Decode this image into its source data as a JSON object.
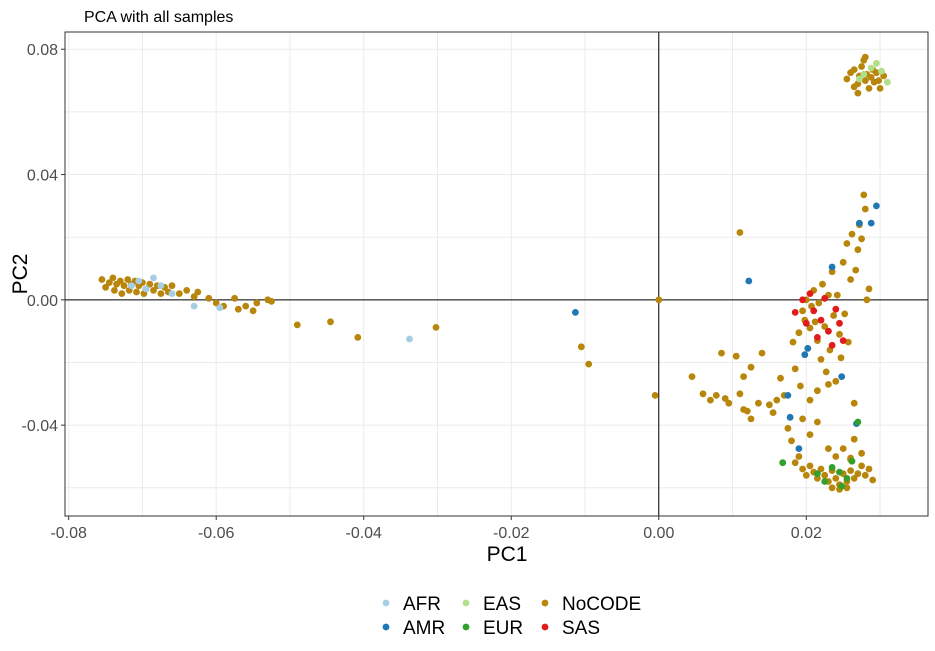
{
  "chart_data": {
    "type": "scatter",
    "title": "PCA with all samples",
    "xlabel": "PC1",
    "ylabel": "PC2",
    "xlim": [
      -0.0805,
      0.0365
    ],
    "ylim": [
      -0.069,
      0.0855
    ],
    "xticks": [
      -0.08,
      -0.06,
      -0.04,
      -0.02,
      0.0,
      0.02
    ],
    "xtick_labels": [
      "-0.08",
      "-0.06",
      "-0.04",
      "-0.02",
      "0.00",
      "0.02"
    ],
    "yticks": [
      -0.04,
      0.0,
      0.04,
      0.08
    ],
    "ytick_labels": [
      "-0.04",
      "0.00",
      "0.04",
      "0.08"
    ],
    "grid": true,
    "reference_lines": {
      "x": 0,
      "y": 0
    },
    "legend_position": "bottom",
    "series": [
      {
        "name": "NoCODE",
        "color": "#b8860b",
        "points": [
          [
            -0.0755,
            0.0065
          ],
          [
            -0.075,
            0.004
          ],
          [
            -0.0745,
            0.0055
          ],
          [
            -0.074,
            0.007
          ],
          [
            -0.0738,
            0.003
          ],
          [
            -0.0735,
            0.005
          ],
          [
            -0.073,
            0.006
          ],
          [
            -0.0728,
            0.002
          ],
          [
            -0.0725,
            0.0045
          ],
          [
            -0.072,
            0.0065
          ],
          [
            -0.0718,
            0.003
          ],
          [
            -0.0715,
            0.005
          ],
          [
            -0.071,
            0.006
          ],
          [
            -0.0708,
            0.0025
          ],
          [
            -0.0705,
            0.0045
          ],
          [
            -0.07,
            0.0055
          ],
          [
            -0.0698,
            0.002
          ],
          [
            -0.0695,
            0.0035
          ],
          [
            -0.069,
            0.005
          ],
          [
            -0.0685,
            0.003
          ],
          [
            -0.068,
            0.0045
          ],
          [
            -0.0675,
            0.002
          ],
          [
            -0.067,
            0.004
          ],
          [
            -0.0665,
            0.0025
          ],
          [
            -0.066,
            0.0045
          ],
          [
            -0.065,
            0.002
          ],
          [
            -0.064,
            0.003
          ],
          [
            -0.063,
            0.001
          ],
          [
            -0.0625,
            0.0025
          ],
          [
            -0.061,
            0.0005
          ],
          [
            -0.06,
            -0.001
          ],
          [
            -0.059,
            -0.002
          ],
          [
            -0.0575,
            0.0005
          ],
          [
            -0.057,
            -0.003
          ],
          [
            -0.056,
            -0.002
          ],
          [
            -0.055,
            -0.0035
          ],
          [
            -0.0545,
            -0.001
          ],
          [
            -0.053,
            0.0
          ],
          [
            -0.0525,
            -0.0005
          ],
          [
            -0.049,
            -0.008
          ],
          [
            -0.0445,
            -0.007
          ],
          [
            -0.0408,
            -0.012
          ],
          [
            -0.0302,
            -0.0088
          ],
          [
            -0.0105,
            -0.015
          ],
          [
            -0.0095,
            -0.0205
          ],
          [
            -0.0005,
            -0.0305
          ],
          [
            0.0,
            0.0
          ],
          [
            0.0045,
            -0.0245
          ],
          [
            0.006,
            -0.03
          ],
          [
            0.007,
            -0.032
          ],
          [
            0.0078,
            -0.0305
          ],
          [
            0.0085,
            -0.017
          ],
          [
            0.009,
            -0.0315
          ],
          [
            0.0095,
            -0.033
          ],
          [
            0.0105,
            -0.018
          ],
          [
            0.011,
            -0.03
          ],
          [
            0.0115,
            -0.035
          ],
          [
            0.012,
            -0.0355
          ],
          [
            0.0125,
            -0.038
          ],
          [
            0.0115,
            -0.0245
          ],
          [
            0.0125,
            -0.0215
          ],
          [
            0.011,
            0.0215
          ],
          [
            0.0135,
            -0.033
          ],
          [
            0.014,
            -0.017
          ],
          [
            0.015,
            -0.0335
          ],
          [
            0.0155,
            -0.036
          ],
          [
            0.016,
            -0.032
          ],
          [
            0.0165,
            -0.025
          ],
          [
            0.017,
            -0.0305
          ],
          [
            0.0175,
            -0.041
          ],
          [
            0.018,
            -0.045
          ],
          [
            0.0182,
            -0.0135
          ],
          [
            0.0185,
            -0.022
          ],
          [
            0.019,
            -0.0105
          ],
          [
            0.0192,
            -0.0275
          ],
          [
            0.0195,
            -0.0035
          ],
          [
            0.0198,
            -0.0065
          ],
          [
            0.02,
            0.0
          ],
          [
            0.0202,
            -0.0155
          ],
          [
            0.0205,
            -0.009
          ],
          [
            0.0207,
            -0.002
          ],
          [
            0.021,
            0.003
          ],
          [
            0.0212,
            -0.007
          ],
          [
            0.0215,
            -0.013
          ],
          [
            0.0217,
            -0.001
          ],
          [
            0.022,
            -0.019
          ],
          [
            0.0222,
            0.005
          ],
          [
            0.0225,
            -0.0085
          ],
          [
            0.0227,
            -0.023
          ],
          [
            0.023,
            0.0015
          ],
          [
            0.0232,
            -0.016
          ],
          [
            0.0235,
            0.009
          ],
          [
            0.0237,
            -0.005
          ],
          [
            0.024,
            -0.026
          ],
          [
            0.0242,
            0.0015
          ],
          [
            0.0245,
            -0.011
          ],
          [
            0.0247,
            -0.0185
          ],
          [
            0.025,
            0.012
          ],
          [
            0.0252,
            -0.0045
          ],
          [
            0.0255,
            0.018
          ],
          [
            0.0257,
            -0.0135
          ],
          [
            0.026,
            0.0065
          ],
          [
            0.0262,
            0.021
          ],
          [
            0.0265,
            -0.033
          ],
          [
            0.0267,
            0.0095
          ],
          [
            0.027,
            0.016
          ],
          [
            0.0272,
            0.024
          ],
          [
            0.0275,
            0.0195
          ],
          [
            0.0278,
            0.0335
          ],
          [
            0.028,
            0.029
          ],
          [
            0.0282,
            0.0
          ],
          [
            0.0285,
            0.0035
          ],
          [
            0.0205,
            -0.032
          ],
          [
            0.0215,
            -0.029
          ],
          [
            0.023,
            -0.027
          ],
          [
            0.0195,
            -0.038
          ],
          [
            0.0205,
            -0.043
          ],
          [
            0.0215,
            -0.039
          ],
          [
            0.0185,
            -0.052
          ],
          [
            0.019,
            -0.05
          ],
          [
            0.0195,
            -0.054
          ],
          [
            0.02,
            -0.056
          ],
          [
            0.0205,
            -0.053
          ],
          [
            0.021,
            -0.055
          ],
          [
            0.0215,
            -0.057
          ],
          [
            0.022,
            -0.054
          ],
          [
            0.0225,
            -0.056
          ],
          [
            0.023,
            -0.058
          ],
          [
            0.0235,
            -0.0545
          ],
          [
            0.024,
            -0.057
          ],
          [
            0.0245,
            -0.059
          ],
          [
            0.025,
            -0.0555
          ],
          [
            0.0255,
            -0.058
          ],
          [
            0.026,
            -0.0545
          ],
          [
            0.0265,
            -0.057
          ],
          [
            0.027,
            -0.0555
          ],
          [
            0.0275,
            -0.053
          ],
          [
            0.028,
            -0.056
          ],
          [
            0.0285,
            -0.054
          ],
          [
            0.029,
            -0.0575
          ],
          [
            0.023,
            -0.0475
          ],
          [
            0.024,
            -0.05
          ],
          [
            0.025,
            -0.0475
          ],
          [
            0.026,
            -0.0505
          ],
          [
            0.0265,
            -0.0445
          ],
          [
            0.0275,
            -0.049
          ],
          [
            0.0235,
            -0.06
          ],
          [
            0.0245,
            -0.0605
          ],
          [
            0.0255,
            -0.06
          ],
          [
            0.026,
            -0.051
          ],
          [
            0.0255,
            0.0705
          ],
          [
            0.026,
            0.0725
          ],
          [
            0.0265,
            0.0735
          ],
          [
            0.027,
            0.069
          ],
          [
            0.0272,
            0.0715
          ],
          [
            0.0275,
            0.0745
          ],
          [
            0.0278,
            0.0765
          ],
          [
            0.028,
            0.07
          ],
          [
            0.0282,
            0.072
          ],
          [
            0.0285,
            0.0675
          ],
          [
            0.0288,
            0.071
          ],
          [
            0.029,
            0.0735
          ],
          [
            0.0292,
            0.0695
          ],
          [
            0.0295,
            0.0725
          ],
          [
            0.0298,
            0.07
          ],
          [
            0.03,
            0.0675
          ],
          [
            0.0265,
            0.068
          ],
          [
            0.027,
            0.066
          ],
          [
            0.028,
            0.0775
          ],
          [
            0.0305,
            0.0715
          ]
        ]
      },
      {
        "name": "AFR",
        "color": "#a6cee3",
        "points": [
          [
            -0.0715,
            0.0045
          ],
          [
            -0.0705,
            0.006
          ],
          [
            -0.0695,
            0.0035
          ],
          [
            -0.0685,
            0.007
          ],
          [
            -0.0675,
            0.0045
          ],
          [
            -0.066,
            0.002
          ],
          [
            -0.063,
            -0.002
          ],
          [
            -0.0595,
            -0.0025
          ],
          [
            -0.0338,
            -0.0125
          ]
        ]
      },
      {
        "name": "AMR",
        "color": "#1f78b4",
        "points": [
          [
            -0.0113,
            -0.004
          ],
          [
            0.0122,
            0.006
          ],
          [
            0.0175,
            -0.0305
          ],
          [
            0.0178,
            -0.0375
          ],
          [
            0.019,
            -0.0475
          ],
          [
            0.0198,
            -0.0175
          ],
          [
            0.0202,
            -0.0155
          ],
          [
            0.0235,
            0.0105
          ],
          [
            0.0248,
            -0.0245
          ],
          [
            0.0268,
            -0.0395
          ],
          [
            0.0272,
            0.0245
          ],
          [
            0.0288,
            0.0245
          ],
          [
            0.0295,
            0.03
          ]
        ]
      },
      {
        "name": "EAS",
        "color": "#b2df8a",
        "points": [
          [
            0.0278,
            0.072
          ],
          [
            0.0288,
            0.074
          ],
          [
            0.0295,
            0.0755
          ],
          [
            0.0302,
            0.073
          ],
          [
            0.031,
            0.0695
          ],
          [
            0.0272,
            0.0705
          ]
        ]
      },
      {
        "name": "EUR",
        "color": "#33a02c",
        "points": [
          [
            0.0168,
            -0.052
          ],
          [
            0.0215,
            -0.0555
          ],
          [
            0.0225,
            -0.058
          ],
          [
            0.0235,
            -0.0535
          ],
          [
            0.0245,
            -0.055
          ],
          [
            0.0255,
            -0.057
          ],
          [
            0.0262,
            -0.0515
          ],
          [
            0.027,
            -0.039
          ],
          [
            0.0248,
            -0.0595
          ]
        ]
      },
      {
        "name": "SAS",
        "color": "#e31a1c",
        "points": [
          [
            0.0185,
            -0.004
          ],
          [
            0.0195,
            0.0
          ],
          [
            0.02,
            -0.0075
          ],
          [
            0.0205,
            0.002
          ],
          [
            0.021,
            -0.0035
          ],
          [
            0.0215,
            -0.012
          ],
          [
            0.022,
            -0.0065
          ],
          [
            0.0225,
            0.0005
          ],
          [
            0.023,
            -0.01
          ],
          [
            0.0235,
            -0.0145
          ],
          [
            0.024,
            -0.003
          ],
          [
            0.0245,
            -0.0075
          ],
          [
            0.025,
            -0.013
          ]
        ]
      }
    ],
    "legend": {
      "columns": [
        [
          "AFR",
          "AMR"
        ],
        [
          "EAS",
          "EUR"
        ],
        [
          "NoCODE",
          "SAS"
        ]
      ]
    }
  }
}
